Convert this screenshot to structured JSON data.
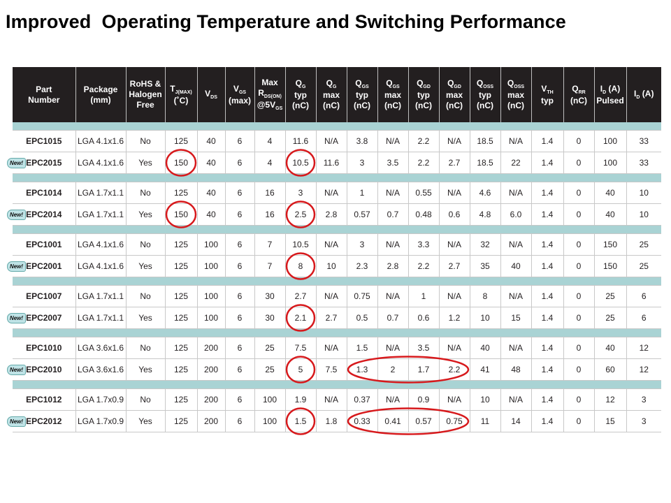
{
  "title": "Improved  Operating Temperature and Switching Performance",
  "new_badge_label": "New!",
  "highlight_color": "#d7191c",
  "header_bg": "#231f20",
  "separator_color": "#a9d3d4",
  "headers": [
    "Part\nNumber",
    "Package\n(mm)",
    "RoHS &\nHalogen\nFree",
    "T_J(MAX)\n(˚C)",
    "V_DS",
    "V_GS\n(max)",
    "Max\nR_DS(ON)\n@5V_GS",
    "Q_G\ntyp\n(nC)",
    "Q_G\nmax\n(nC)",
    "Q_GS\ntyp\n(nC)",
    "Q_GS\nmax\n(nC)",
    "Q_GD\ntyp\n(nC)",
    "Q_GD\nmax\n(nC)",
    "Q_OSS\ntyp\n(nC)",
    "Q_OSS\nmax\n(nC)",
    "V_TH\ntyp",
    "Q_RR\n(nC)",
    "I_D (A)\nPulsed",
    "I_D (A)"
  ],
  "rows": [
    {
      "new": false,
      "cells": [
        "EPC1015",
        "LGA 4.1x1.6",
        "No",
        "125",
        "40",
        "6",
        "4",
        "11.6",
        "N/A",
        "3.8",
        "N/A",
        "2.2",
        "N/A",
        "18.5",
        "N/A",
        "1.4",
        "0",
        "100",
        "33"
      ]
    },
    {
      "new": true,
      "cells": [
        "EPC2015",
        "LGA 4.1x1.6",
        "Yes",
        "150",
        "40",
        "6",
        "4",
        "10.5",
        "11.6",
        "3",
        "3.5",
        "2.2",
        "2.7",
        "18.5",
        "22",
        "1.4",
        "0",
        "100",
        "33"
      ]
    },
    {
      "new": false,
      "cells": [
        "EPC1014",
        "LGA 1.7x1.1",
        "No",
        "125",
        "40",
        "6",
        "16",
        "3",
        "N/A",
        "1",
        "N/A",
        "0.55",
        "N/A",
        "4.6",
        "N/A",
        "1.4",
        "0",
        "40",
        "10"
      ]
    },
    {
      "new": true,
      "cells": [
        "EPC2014",
        "LGA 1.7x1.1",
        "Yes",
        "150",
        "40",
        "6",
        "16",
        "2.5",
        "2.8",
        "0.57",
        "0.7",
        "0.48",
        "0.6",
        "4.8",
        "6.0",
        "1.4",
        "0",
        "40",
        "10"
      ]
    },
    {
      "new": false,
      "cells": [
        "EPC1001",
        "LGA 4.1x1.6",
        "No",
        "125",
        "100",
        "6",
        "7",
        "10.5",
        "N/A",
        "3",
        "N/A",
        "3.3",
        "N/A",
        "32",
        "N/A",
        "1.4",
        "0",
        "150",
        "25"
      ]
    },
    {
      "new": true,
      "cells": [
        "EPC2001",
        "LGA 4.1x1.6",
        "Yes",
        "125",
        "100",
        "6",
        "7",
        "8",
        "10",
        "2.3",
        "2.8",
        "2.2",
        "2.7",
        "35",
        "40",
        "1.4",
        "0",
        "150",
        "25"
      ]
    },
    {
      "new": false,
      "cells": [
        "EPC1007",
        "LGA 1.7x1.1",
        "No",
        "125",
        "100",
        "6",
        "30",
        "2.7",
        "N/A",
        "0.75",
        "N/A",
        "1",
        "N/A",
        "8",
        "N/A",
        "1.4",
        "0",
        "25",
        "6"
      ]
    },
    {
      "new": true,
      "cells": [
        "EPC2007",
        "LGA 1.7x1.1",
        "Yes",
        "125",
        "100",
        "6",
        "30",
        "2.1",
        "2.7",
        "0.5",
        "0.7",
        "0.6",
        "1.2",
        "10",
        "15",
        "1.4",
        "0",
        "25",
        "6"
      ]
    },
    {
      "new": false,
      "cells": [
        "EPC1010",
        "LGA 3.6x1.6",
        "No",
        "125",
        "200",
        "6",
        "25",
        "7.5",
        "N/A",
        "1.5",
        "N/A",
        "3.5",
        "N/A",
        "40",
        "N/A",
        "1.4",
        "0",
        "40",
        "12"
      ]
    },
    {
      "new": true,
      "cells": [
        "EPC2010",
        "LGA 3.6x1.6",
        "Yes",
        "125",
        "200",
        "6",
        "25",
        "5",
        "7.5",
        "1.3",
        "2",
        "1.7",
        "2.2",
        "41",
        "48",
        "1.4",
        "0",
        "60",
        "12"
      ]
    },
    {
      "new": false,
      "cells": [
        "EPC1012",
        "LGA 1.7x0.9",
        "No",
        "125",
        "200",
        "6",
        "100",
        "1.9",
        "N/A",
        "0.37",
        "N/A",
        "0.9",
        "N/A",
        "10",
        "N/A",
        "1.4",
        "0",
        "12",
        "3"
      ]
    },
    {
      "new": true,
      "cells": [
        "EPC2012",
        "LGA 1.7x0.9",
        "Yes",
        "125",
        "200",
        "6",
        "100",
        "1.5",
        "1.8",
        "0.33",
        "0.41",
        "0.57",
        "0.75",
        "11",
        "14",
        "1.4",
        "0",
        "15",
        "3"
      ]
    }
  ],
  "highlights": [
    {
      "row": 1,
      "col": 3
    },
    {
      "row": 1,
      "col": 7
    },
    {
      "row": 3,
      "col": 3
    },
    {
      "row": 3,
      "col": 7
    },
    {
      "row": 5,
      "col": 7
    },
    {
      "row": 7,
      "col": 7
    },
    {
      "row": 9,
      "col": 7
    },
    {
      "row": 11,
      "col": 7
    },
    {
      "row": 9,
      "col_from": 9,
      "col_to": 12
    },
    {
      "row": 11,
      "col_from": 9,
      "col_to": 12
    }
  ]
}
